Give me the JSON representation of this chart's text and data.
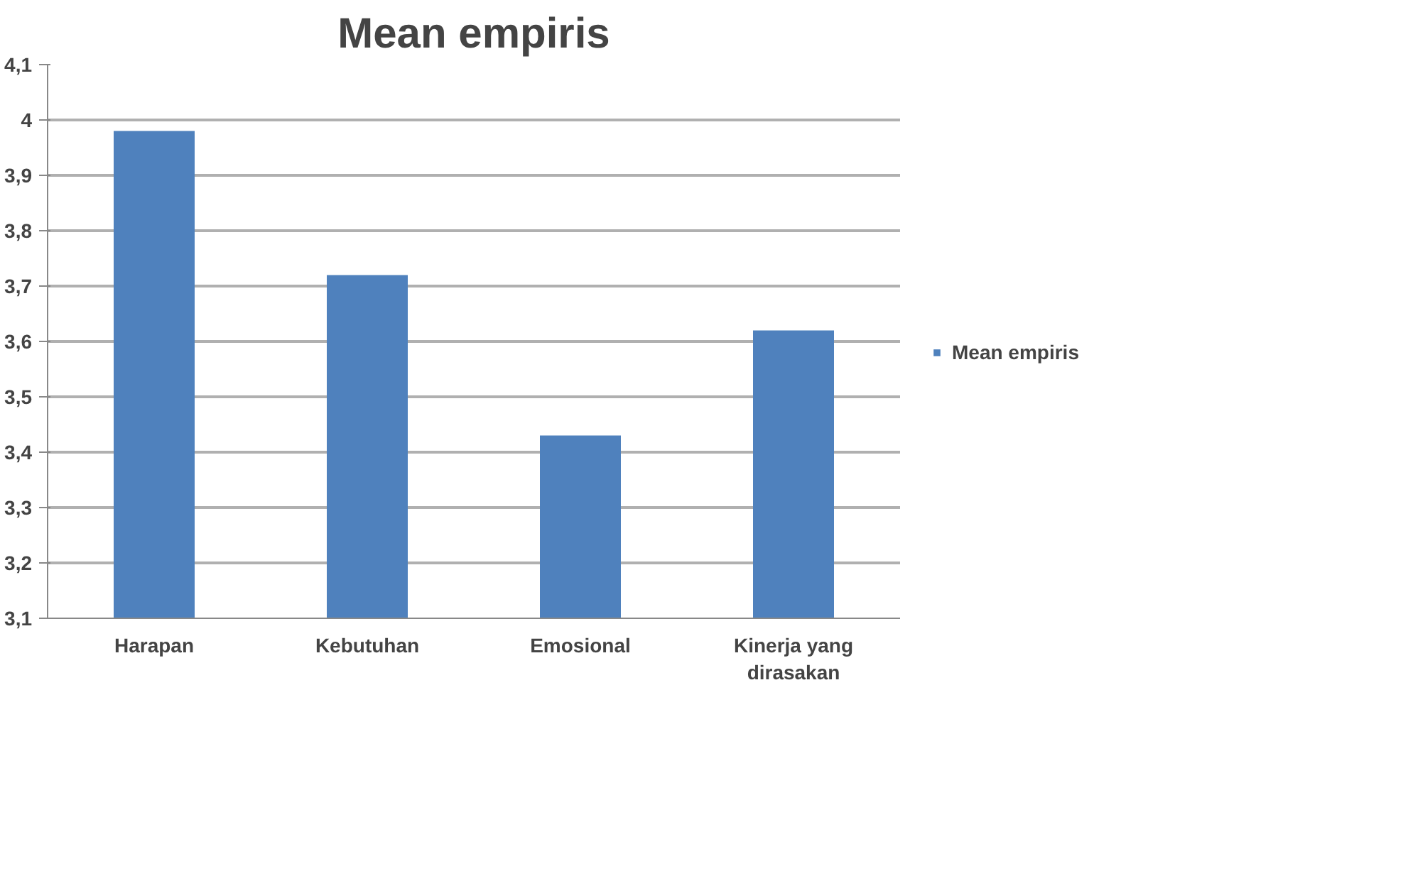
{
  "chart_data": {
    "type": "bar",
    "title": "Mean empiris",
    "categories": [
      "Harapan",
      "Kebutuhan",
      "Emosional",
      "Kinerja yang dirasakan"
    ],
    "series": [
      {
        "name": "Mean empiris",
        "color": "#4f81bd",
        "values": [
          3.98,
          3.72,
          3.43,
          3.62
        ]
      }
    ],
    "ylim": [
      3.1,
      4.1
    ],
    "yticks": [
      {
        "value": 3.1,
        "label": "3,1"
      },
      {
        "value": 3.2,
        "label": "3,2"
      },
      {
        "value": 3.3,
        "label": "3,3"
      },
      {
        "value": 3.4,
        "label": "3,4"
      },
      {
        "value": 3.5,
        "label": "3,5"
      },
      {
        "value": 3.6,
        "label": "3,6"
      },
      {
        "value": 3.7,
        "label": "3,7"
      },
      {
        "value": 3.8,
        "label": "3,8"
      },
      {
        "value": 3.9,
        "label": "3,9"
      },
      {
        "value": 4,
        "label": "4"
      },
      {
        "value": 4.1,
        "label": "4,1"
      }
    ],
    "grid": "y",
    "legend": "right"
  }
}
